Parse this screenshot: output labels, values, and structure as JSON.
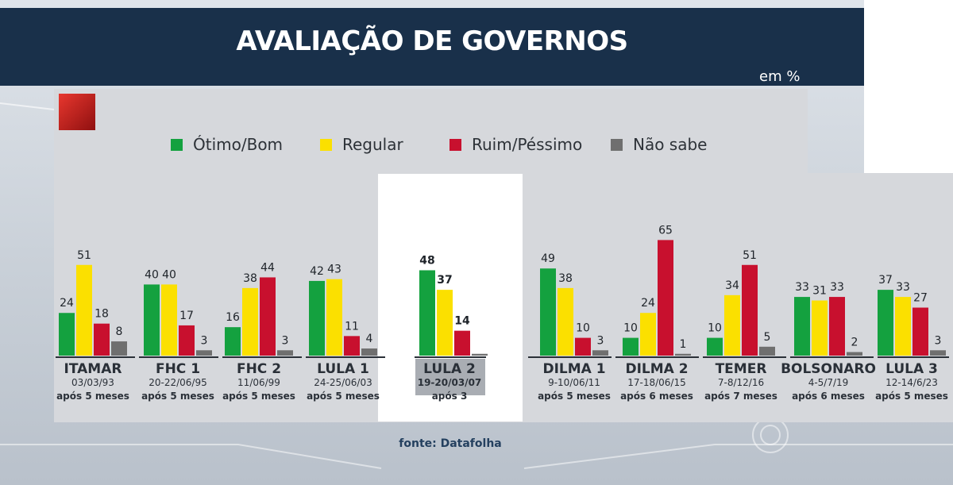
{
  "header": {
    "title": "AVALIAÇÃO DE GOVERNOS",
    "unit": "em %"
  },
  "source": "fonte: Datafolha",
  "colors": {
    "header_bg": "#19304a",
    "panel_bg": "#d6d8dc",
    "otimo_bom": "#14a13f",
    "regular": "#fbe000",
    "ruim_pessimo": "#c8102e",
    "nao_sabe": "#6f6f6f"
  },
  "chart_data": {
    "type": "bar",
    "title": "AVALIAÇÃO DE GOVERNOS",
    "ylabel": "em %",
    "ylim": [
      0,
      70
    ],
    "legend_position": "top",
    "series": [
      {
        "name": "Ótimo/Bom",
        "values": [
          24,
          40,
          16,
          42,
          48,
          49,
          10,
          10,
          33,
          37
        ]
      },
      {
        "name": "Regular",
        "values": [
          51,
          40,
          38,
          43,
          37,
          38,
          24,
          34,
          31,
          33
        ]
      },
      {
        "name": "Ruim/Péssimo",
        "values": [
          18,
          17,
          44,
          11,
          14,
          10,
          65,
          51,
          33,
          27
        ]
      },
      {
        "name": "Não sabe",
        "values": [
          8,
          3,
          3,
          4,
          1,
          3,
          1,
          5,
          2,
          3
        ]
      }
    ],
    "categories": [
      {
        "name": "ITAMAR",
        "date": "03/03/93",
        "period": "após 5 meses"
      },
      {
        "name": "FHC 1",
        "date": "20-22/06/95",
        "period": "após 5 meses"
      },
      {
        "name": "FHC 2",
        "date": "11/06/99",
        "period": "após 5 meses"
      },
      {
        "name": "LULA 1",
        "date": "24-25/06/03",
        "period": "após 5 meses"
      },
      {
        "name": "LULA 2",
        "date": "19-20/03/07",
        "period": "após 3"
      },
      {
        "name": "DILMA 1",
        "date": "9-10/06/11",
        "period": "após 5 meses"
      },
      {
        "name": "DILMA 2",
        "date": "17-18/06/15",
        "period": "após 6 meses"
      },
      {
        "name": "TEMER",
        "date": "7-8/12/16",
        "period": "após 7 meses"
      },
      {
        "name": "BOLSONARO",
        "date": "4-5/7/19",
        "period": "após 6 meses"
      },
      {
        "name": "LULA 3",
        "date": "12-14/6/23",
        "period": "após 5 meses"
      }
    ]
  }
}
